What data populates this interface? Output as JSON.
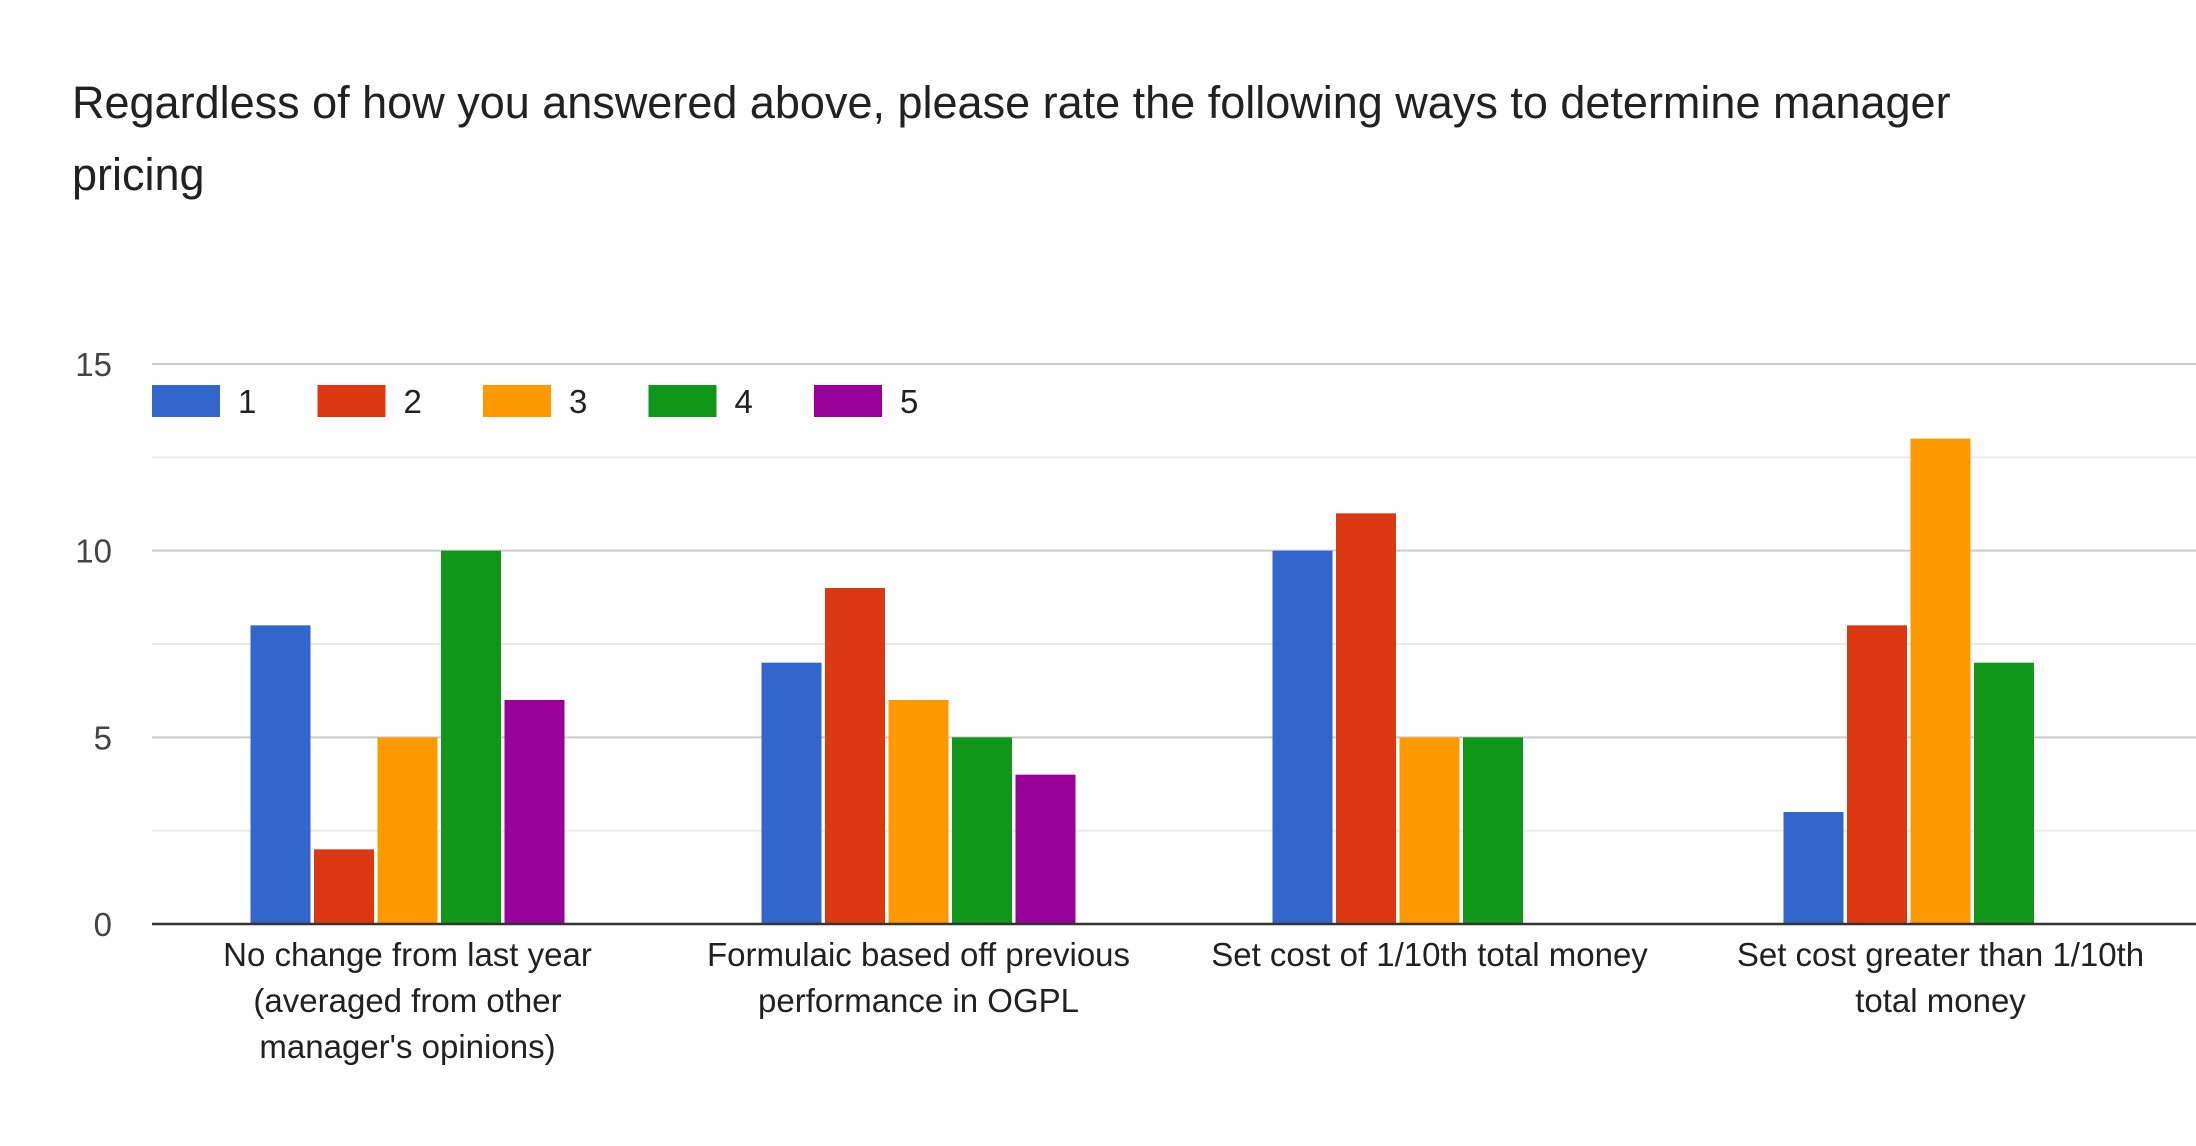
{
  "chart_data": {
    "type": "bar",
    "title": "Regardless of how you answered above, please rate the following ways to determine manager pricing",
    "title_lines": [
      "Regardless of how you answered above, please rate the following ways to determine manager",
      "pricing"
    ],
    "categories": [
      "No change from last year (averaged from other manager's opinions)",
      "Formulaic based off previous performance in OGPL",
      "Set cost of 1/10th total money",
      "Set cost greater than 1/10th total money"
    ],
    "category_label_lines": [
      [
        "No change from last year",
        "(averaged from other",
        "manager's opinions)"
      ],
      [
        "Formulaic based off previous",
        "performance in OGPL"
      ],
      [
        "Set cost of 1/10th total money"
      ],
      [
        "Set cost greater than 1/10th",
        "total money"
      ]
    ],
    "series": [
      {
        "name": "1",
        "color": "#3366cc",
        "values": [
          8,
          7,
          10,
          3
        ]
      },
      {
        "name": "2",
        "color": "#dc3912",
        "values": [
          2,
          9,
          11,
          8
        ]
      },
      {
        "name": "3",
        "color": "#ff9900",
        "values": [
          5,
          6,
          5,
          13
        ]
      },
      {
        "name": "4",
        "color": "#109618",
        "values": [
          10,
          5,
          5,
          7
        ]
      },
      {
        "name": "5",
        "color": "#990099",
        "values": [
          6,
          4,
          0,
          0
        ]
      }
    ],
    "yticks": [
      "0",
      "5",
      "10",
      "15"
    ],
    "ytick_values": [
      0,
      5,
      10,
      15
    ],
    "ylim": [
      0,
      15
    ],
    "minor_grid_step": 2.5,
    "xlabel": "",
    "ylabel": "",
    "legend_position": "top-left",
    "grid": true
  }
}
